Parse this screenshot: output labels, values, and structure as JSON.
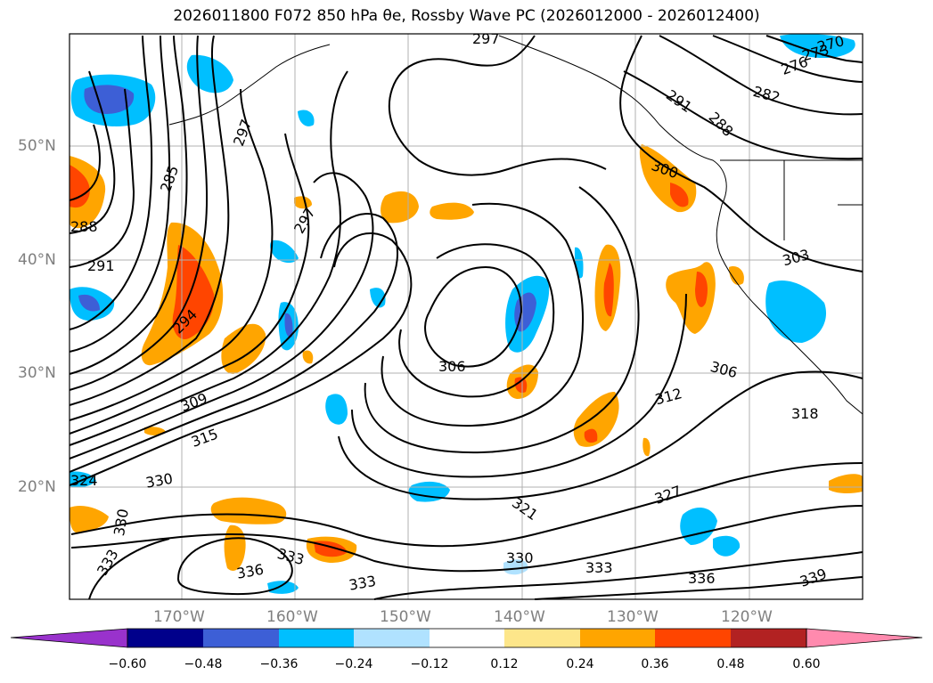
{
  "title": "2026011800 F072 850 hPa θe, Rossby Wave PC (2026012000 - 2026012400)",
  "map": {
    "lat_labels": [
      "50°N",
      "40°N",
      "30°N",
      "20°N"
    ],
    "lon_labels": [
      "170°W",
      "160°W",
      "150°W",
      "140°W",
      "130°W",
      "120°W"
    ],
    "contour_labels": [
      "297",
      "297",
      "285",
      "297",
      "288",
      "291",
      "294",
      "306",
      "309",
      "315",
      "330",
      "324",
      "330",
      "333",
      "333",
      "336",
      "333",
      "330",
      "321",
      "327",
      "333",
      "336",
      "339",
      "312",
      "306",
      "318",
      "303",
      "300",
      "291",
      "288",
      "282",
      "276",
      "273",
      "270"
    ],
    "colors": {
      "grid": "#b0b0b0",
      "contour": "#000000",
      "coast": "#000000"
    }
  },
  "colorbar": {
    "ticks": [
      "−0.60",
      "−0.48",
      "−0.36",
      "−0.24",
      "−0.12",
      "0.12",
      "0.24",
      "0.36",
      "0.48",
      "0.60"
    ],
    "colors": [
      "#9932cc",
      "#00008b",
      "#3d5fd6",
      "#00bfff",
      "#b0e2ff",
      "#ffffff",
      "#fde68a",
      "#ffa500",
      "#ff4500",
      "#b22222",
      "#ff8aae"
    ]
  }
}
